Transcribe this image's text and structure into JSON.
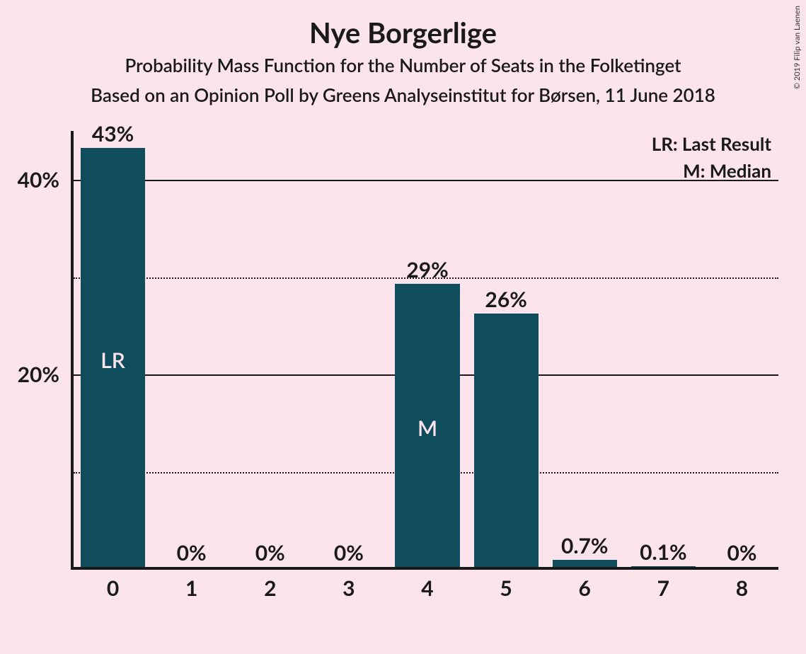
{
  "title": "Nye Borgerlige",
  "subtitle": "Probability Mass Function for the Number of Seats in the Folketinget",
  "subtitle2": "Based on an Opinion Poll by Greens Analyseinstitut for Børsen, 11 June 2018",
  "copyright": "© 2019 Filip van Laenen",
  "chart": {
    "type": "bar",
    "background_color": "#fce4ec",
    "bar_color": "#0f4c5c",
    "axis_color": "#1a1a1a",
    "text_color": "#1a1a1a",
    "annot_text_color": "#fce4ec",
    "title_fontsize": 40,
    "subtitle_fontsize": 26,
    "tick_fontsize": 30,
    "value_label_fontsize": 30,
    "legend_fontsize": 26,
    "bar_annot_fontsize": 30,
    "x_categories": [
      "0",
      "1",
      "2",
      "3",
      "4",
      "5",
      "6",
      "7",
      "8"
    ],
    "values": [
      43,
      0,
      0,
      0,
      29,
      26,
      0.7,
      0.1,
      0
    ],
    "value_labels": [
      "43%",
      "0%",
      "0%",
      "0%",
      "29%",
      "26%",
      "0.7%",
      "0.1%",
      "0%"
    ],
    "y_ticks_major": [
      20,
      40
    ],
    "y_ticks_major_labels": [
      "20%",
      "40%"
    ],
    "y_ticks_minor": [
      10,
      30
    ],
    "y_max": 45,
    "bar_width_ratio": 0.82,
    "bar_annotations": [
      {
        "index": 0,
        "text": "LR",
        "y_value": 21.5
      },
      {
        "index": 4,
        "text": "M",
        "y_value": 14.5
      }
    ],
    "legend": {
      "lines": [
        "LR: Last Result",
        "M: Median"
      ]
    }
  }
}
